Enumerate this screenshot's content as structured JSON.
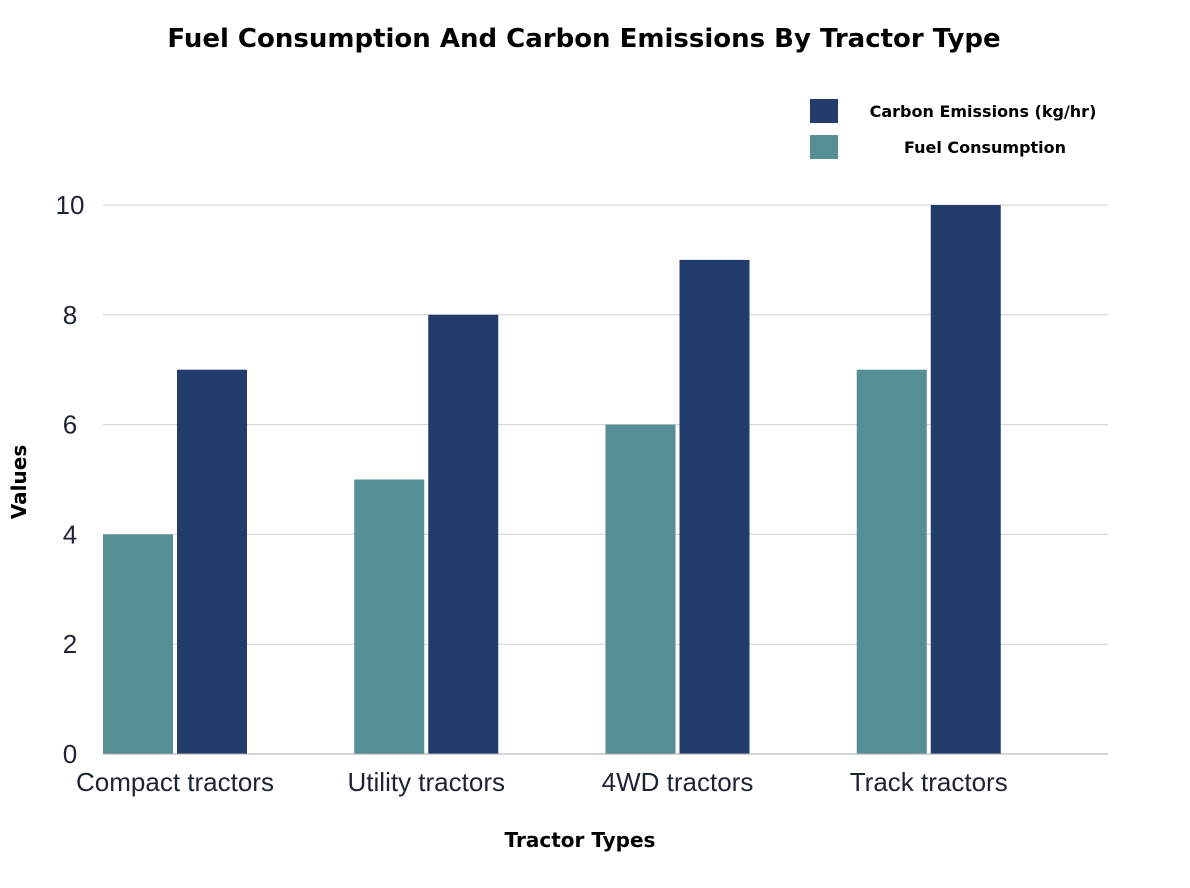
{
  "chart_data": {
    "type": "bar",
    "title": "Fuel Consumption And Carbon Emissions By Tractor Type",
    "xlabel": "Tractor Types",
    "ylabel": "Values",
    "categories": [
      "Compact tractors",
      "Utility tractors",
      "4WD tractors",
      "Track tractors"
    ],
    "series": [
      {
        "name": "Fuel Consumption",
        "values": [
          4,
          5,
          6,
          7
        ],
        "color": "#568e96"
      },
      {
        "name": "Carbon Emissions (kg/hr)",
        "values": [
          7,
          8,
          9,
          10
        ],
        "color": "#223d6b"
      }
    ],
    "legend_order": [
      "Carbon Emissions (kg/hr)",
      "Fuel Consumption"
    ],
    "legend_position": "top-right",
    "ylim": [
      0,
      10
    ],
    "yticks": [
      0,
      2,
      4,
      6,
      8,
      10
    ],
    "grid": true
  }
}
